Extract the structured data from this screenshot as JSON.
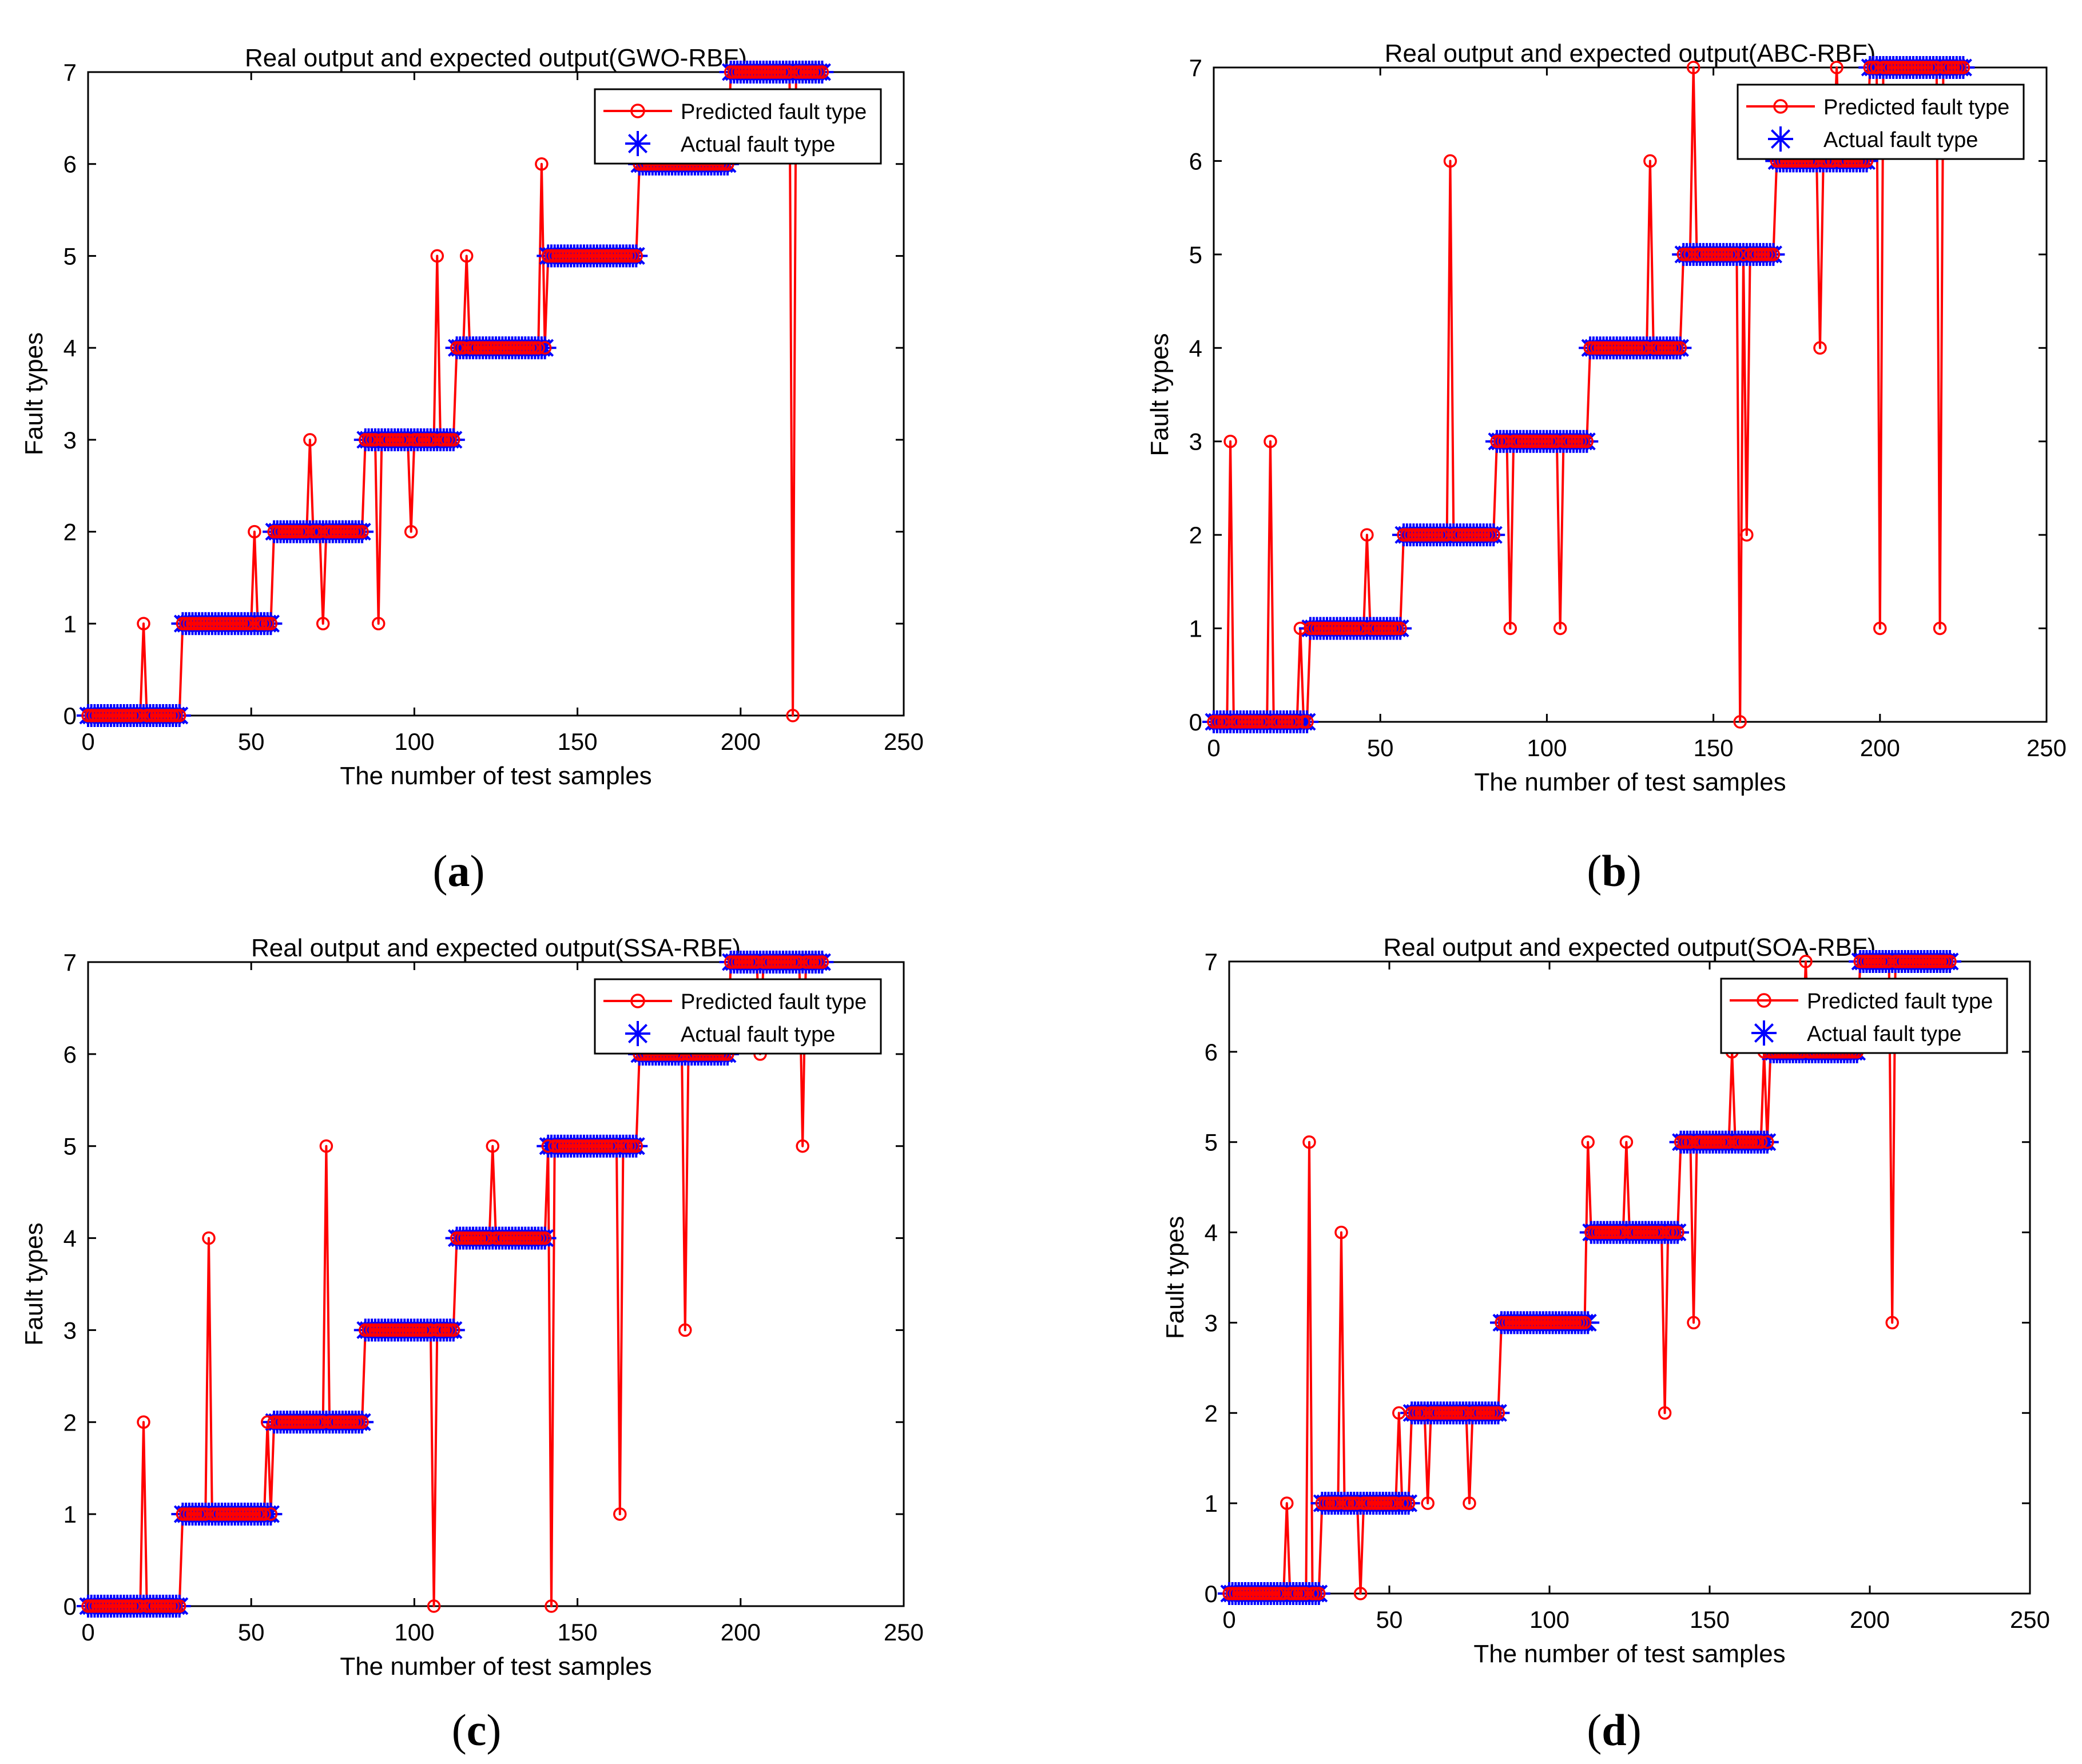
{
  "figure": {
    "panels": [
      {
        "label_open": "(",
        "label_letter": "a",
        "label_close": ")"
      },
      {
        "label_open": "(",
        "label_letter": "b",
        "label_close": ")"
      },
      {
        "label_open": "(",
        "label_letter": "c",
        "label_close": ")"
      },
      {
        "label_open": "(",
        "label_letter": "d",
        "label_close": ")"
      }
    ]
  },
  "colors": {
    "predicted": "#ff0000",
    "actual": "#0000ff",
    "axis": "#000000"
  },
  "chart_data": [
    {
      "type": "line",
      "title": "Real output and expected output(GWO-RBF)",
      "xlabel": "The number of test samples",
      "ylabel": "Fault types",
      "xlim": [
        0,
        250
      ],
      "ylim": [
        0,
        7
      ],
      "xticks": [
        0,
        50,
        100,
        150,
        200,
        250
      ],
      "yticks": [
        0,
        1,
        2,
        3,
        4,
        5,
        6,
        7
      ],
      "legend": {
        "position": "top-right",
        "entries": [
          "Predicted fault type",
          "Actual fault type"
        ]
      },
      "actual": {
        "name": "Actual fault type",
        "segments": [
          [
            0,
            28,
            0
          ],
          [
            29,
            57,
            1
          ],
          [
            57,
            85,
            2
          ],
          [
            85,
            113,
            3
          ],
          [
            113,
            141,
            4
          ],
          [
            141,
            169,
            5
          ],
          [
            169,
            197,
            6
          ],
          [
            197,
            225,
            7
          ]
        ]
      },
      "predicted": {
        "name": "Predicted fault type",
        "outliers": [
          [
            17,
            1
          ],
          [
            51,
            2
          ],
          [
            68,
            3
          ],
          [
            72,
            1
          ],
          [
            89,
            1
          ],
          [
            99,
            2
          ],
          [
            107,
            5
          ],
          [
            116,
            5
          ],
          [
            139,
            6
          ],
          [
            216,
            0
          ]
        ]
      }
    },
    {
      "type": "line",
      "title": "Real output and expected output(ABC-RBF)",
      "xlabel": "The number of test samples",
      "ylabel": "Fault types",
      "xlim": [
        0,
        250
      ],
      "ylim": [
        0,
        7
      ],
      "xticks": [
        0,
        50,
        100,
        150,
        200,
        250
      ],
      "yticks": [
        0,
        1,
        2,
        3,
        4,
        5,
        6,
        7
      ],
      "legend": {
        "position": "top-right",
        "entries": [
          "Predicted fault type",
          "Actual fault type"
        ]
      },
      "actual": {
        "name": "Actual fault type",
        "segments": [
          [
            0,
            28,
            0
          ],
          [
            29,
            57,
            1
          ],
          [
            57,
            85,
            2
          ],
          [
            85,
            113,
            3
          ],
          [
            113,
            141,
            4
          ],
          [
            141,
            169,
            5
          ],
          [
            169,
            197,
            6
          ],
          [
            197,
            225,
            7
          ]
        ]
      },
      "predicted": {
        "name": "Predicted fault type",
        "outliers": [
          [
            5,
            3
          ],
          [
            17,
            3
          ],
          [
            26,
            1
          ],
          [
            46,
            2
          ],
          [
            71,
            6
          ],
          [
            89,
            1
          ],
          [
            104,
            1
          ],
          [
            131,
            6
          ],
          [
            144,
            7
          ],
          [
            158,
            0
          ],
          [
            160,
            2
          ],
          [
            182,
            4
          ],
          [
            187,
            7
          ],
          [
            200,
            1
          ],
          [
            218,
            1
          ]
        ]
      }
    },
    {
      "type": "line",
      "title": "Real output and expected output(SSA-RBF)",
      "xlabel": "The number of test samples",
      "ylabel": "Fault types",
      "xlim": [
        0,
        250
      ],
      "ylim": [
        0,
        7
      ],
      "xticks": [
        0,
        50,
        100,
        150,
        200,
        250
      ],
      "yticks": [
        0,
        1,
        2,
        3,
        4,
        5,
        6,
        7
      ],
      "legend": {
        "position": "top-right",
        "entries": [
          "Predicted fault type",
          "Actual fault type"
        ]
      },
      "actual": {
        "name": "Actual fault type",
        "segments": [
          [
            0,
            28,
            0
          ],
          [
            29,
            57,
            1
          ],
          [
            57,
            85,
            2
          ],
          [
            85,
            113,
            3
          ],
          [
            113,
            141,
            4
          ],
          [
            141,
            169,
            5
          ],
          [
            169,
            197,
            6
          ],
          [
            197,
            225,
            7
          ]
        ]
      },
      "predicted": {
        "name": "Predicted fault type",
        "outliers": [
          [
            17,
            2
          ],
          [
            37,
            4
          ],
          [
            55,
            2
          ],
          [
            73,
            5
          ],
          [
            106,
            0
          ],
          [
            124,
            5
          ],
          [
            142,
            0
          ],
          [
            163,
            1
          ],
          [
            183,
            3
          ],
          [
            206,
            6
          ],
          [
            219,
            5
          ]
        ]
      }
    },
    {
      "type": "line",
      "title": "Real output and expected output(SOA-RBF)",
      "xlabel": "The number of test samples",
      "ylabel": "Fault types",
      "xlim": [
        0,
        250
      ],
      "ylim": [
        0,
        7
      ],
      "xticks": [
        0,
        50,
        100,
        150,
        200,
        250
      ],
      "yticks": [
        0,
        1,
        2,
        3,
        4,
        5,
        6,
        7
      ],
      "legend": {
        "position": "top-right",
        "entries": [
          "Predicted fault type",
          "Actual fault type"
        ]
      },
      "actual": {
        "name": "Actual fault type",
        "segments": [
          [
            0,
            28,
            0
          ],
          [
            29,
            57,
            1
          ],
          [
            57,
            85,
            2
          ],
          [
            85,
            113,
            3
          ],
          [
            113,
            141,
            4
          ],
          [
            141,
            169,
            5
          ],
          [
            169,
            197,
            6
          ],
          [
            197,
            225,
            7
          ]
        ]
      },
      "predicted": {
        "name": "Predicted fault type",
        "outliers": [
          [
            18,
            1
          ],
          [
            25,
            5
          ],
          [
            35,
            4
          ],
          [
            41,
            0
          ],
          [
            53,
            2
          ],
          [
            62,
            1
          ],
          [
            75,
            1
          ],
          [
            112,
            5
          ],
          [
            124,
            5
          ],
          [
            136,
            2
          ],
          [
            145,
            3
          ],
          [
            157,
            6
          ],
          [
            167,
            6
          ],
          [
            180,
            7
          ],
          [
            207,
            3
          ]
        ]
      }
    }
  ]
}
